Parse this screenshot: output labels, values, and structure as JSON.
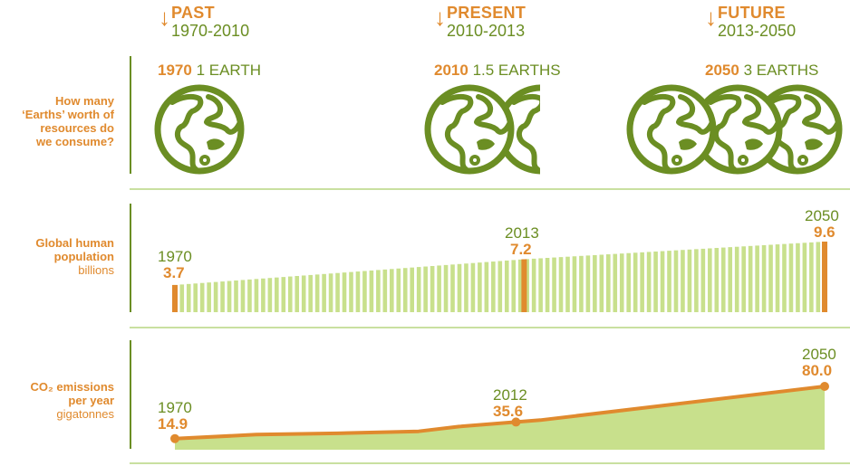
{
  "periods": [
    {
      "name": "PAST",
      "range": "1970-2010"
    },
    {
      "name": "PRESENT",
      "range": "2010-2013"
    },
    {
      "name": "FUTURE",
      "range": "2013-2050"
    }
  ],
  "rows": {
    "earths": {
      "label_lines": [
        "How many",
        "‘Earths’ worth of",
        "resources do",
        "we consume?"
      ]
    },
    "population": {
      "label_lines": [
        "Global human",
        "population"
      ],
      "unit": "billions"
    },
    "co2": {
      "label_lines": [
        "CO₂ emissions",
        "per year"
      ],
      "unit": "gigatonnes"
    }
  },
  "earths": [
    {
      "year": "1970",
      "text": "1 EARTH",
      "count": 1
    },
    {
      "year": "2010",
      "text": "1.5 EARTHS",
      "count": 1.5
    },
    {
      "year": "2050",
      "text": "3 EARTHS",
      "count": 3
    }
  ],
  "chart_data": [
    {
      "type": "bar",
      "title": "Global human population",
      "ylabel": "billions",
      "x_range": [
        1970,
        2050
      ],
      "highlight": [
        {
          "year": "1970",
          "value": "3.7"
        },
        {
          "year": "2013",
          "value": "7.2"
        },
        {
          "year": "2050",
          "value": "9.6"
        }
      ],
      "points": [
        [
          1970,
          3.7
        ],
        [
          2013,
          7.2
        ],
        [
          2050,
          9.6
        ]
      ]
    },
    {
      "type": "area",
      "title": "CO₂ emissions per year",
      "ylabel": "gigatonnes",
      "x_range": [
        1970,
        2050
      ],
      "highlight": [
        {
          "year": "1970",
          "value": "14.9"
        },
        {
          "year": "2012",
          "value": "35.6"
        },
        {
          "year": "2050",
          "value": "80.0"
        }
      ],
      "points": [
        [
          1970,
          14.9
        ],
        [
          1980,
          20
        ],
        [
          1990,
          21.5
        ],
        [
          2000,
          24
        ],
        [
          2005,
          30
        ],
        [
          2012,
          35.6
        ],
        [
          2015,
          38
        ],
        [
          2050,
          80.0
        ]
      ]
    }
  ],
  "colors": {
    "orange": "#E08A2E",
    "green": "#6B8E23",
    "light_green": "#C9E0A0",
    "fill_green": "#C8E08C"
  }
}
